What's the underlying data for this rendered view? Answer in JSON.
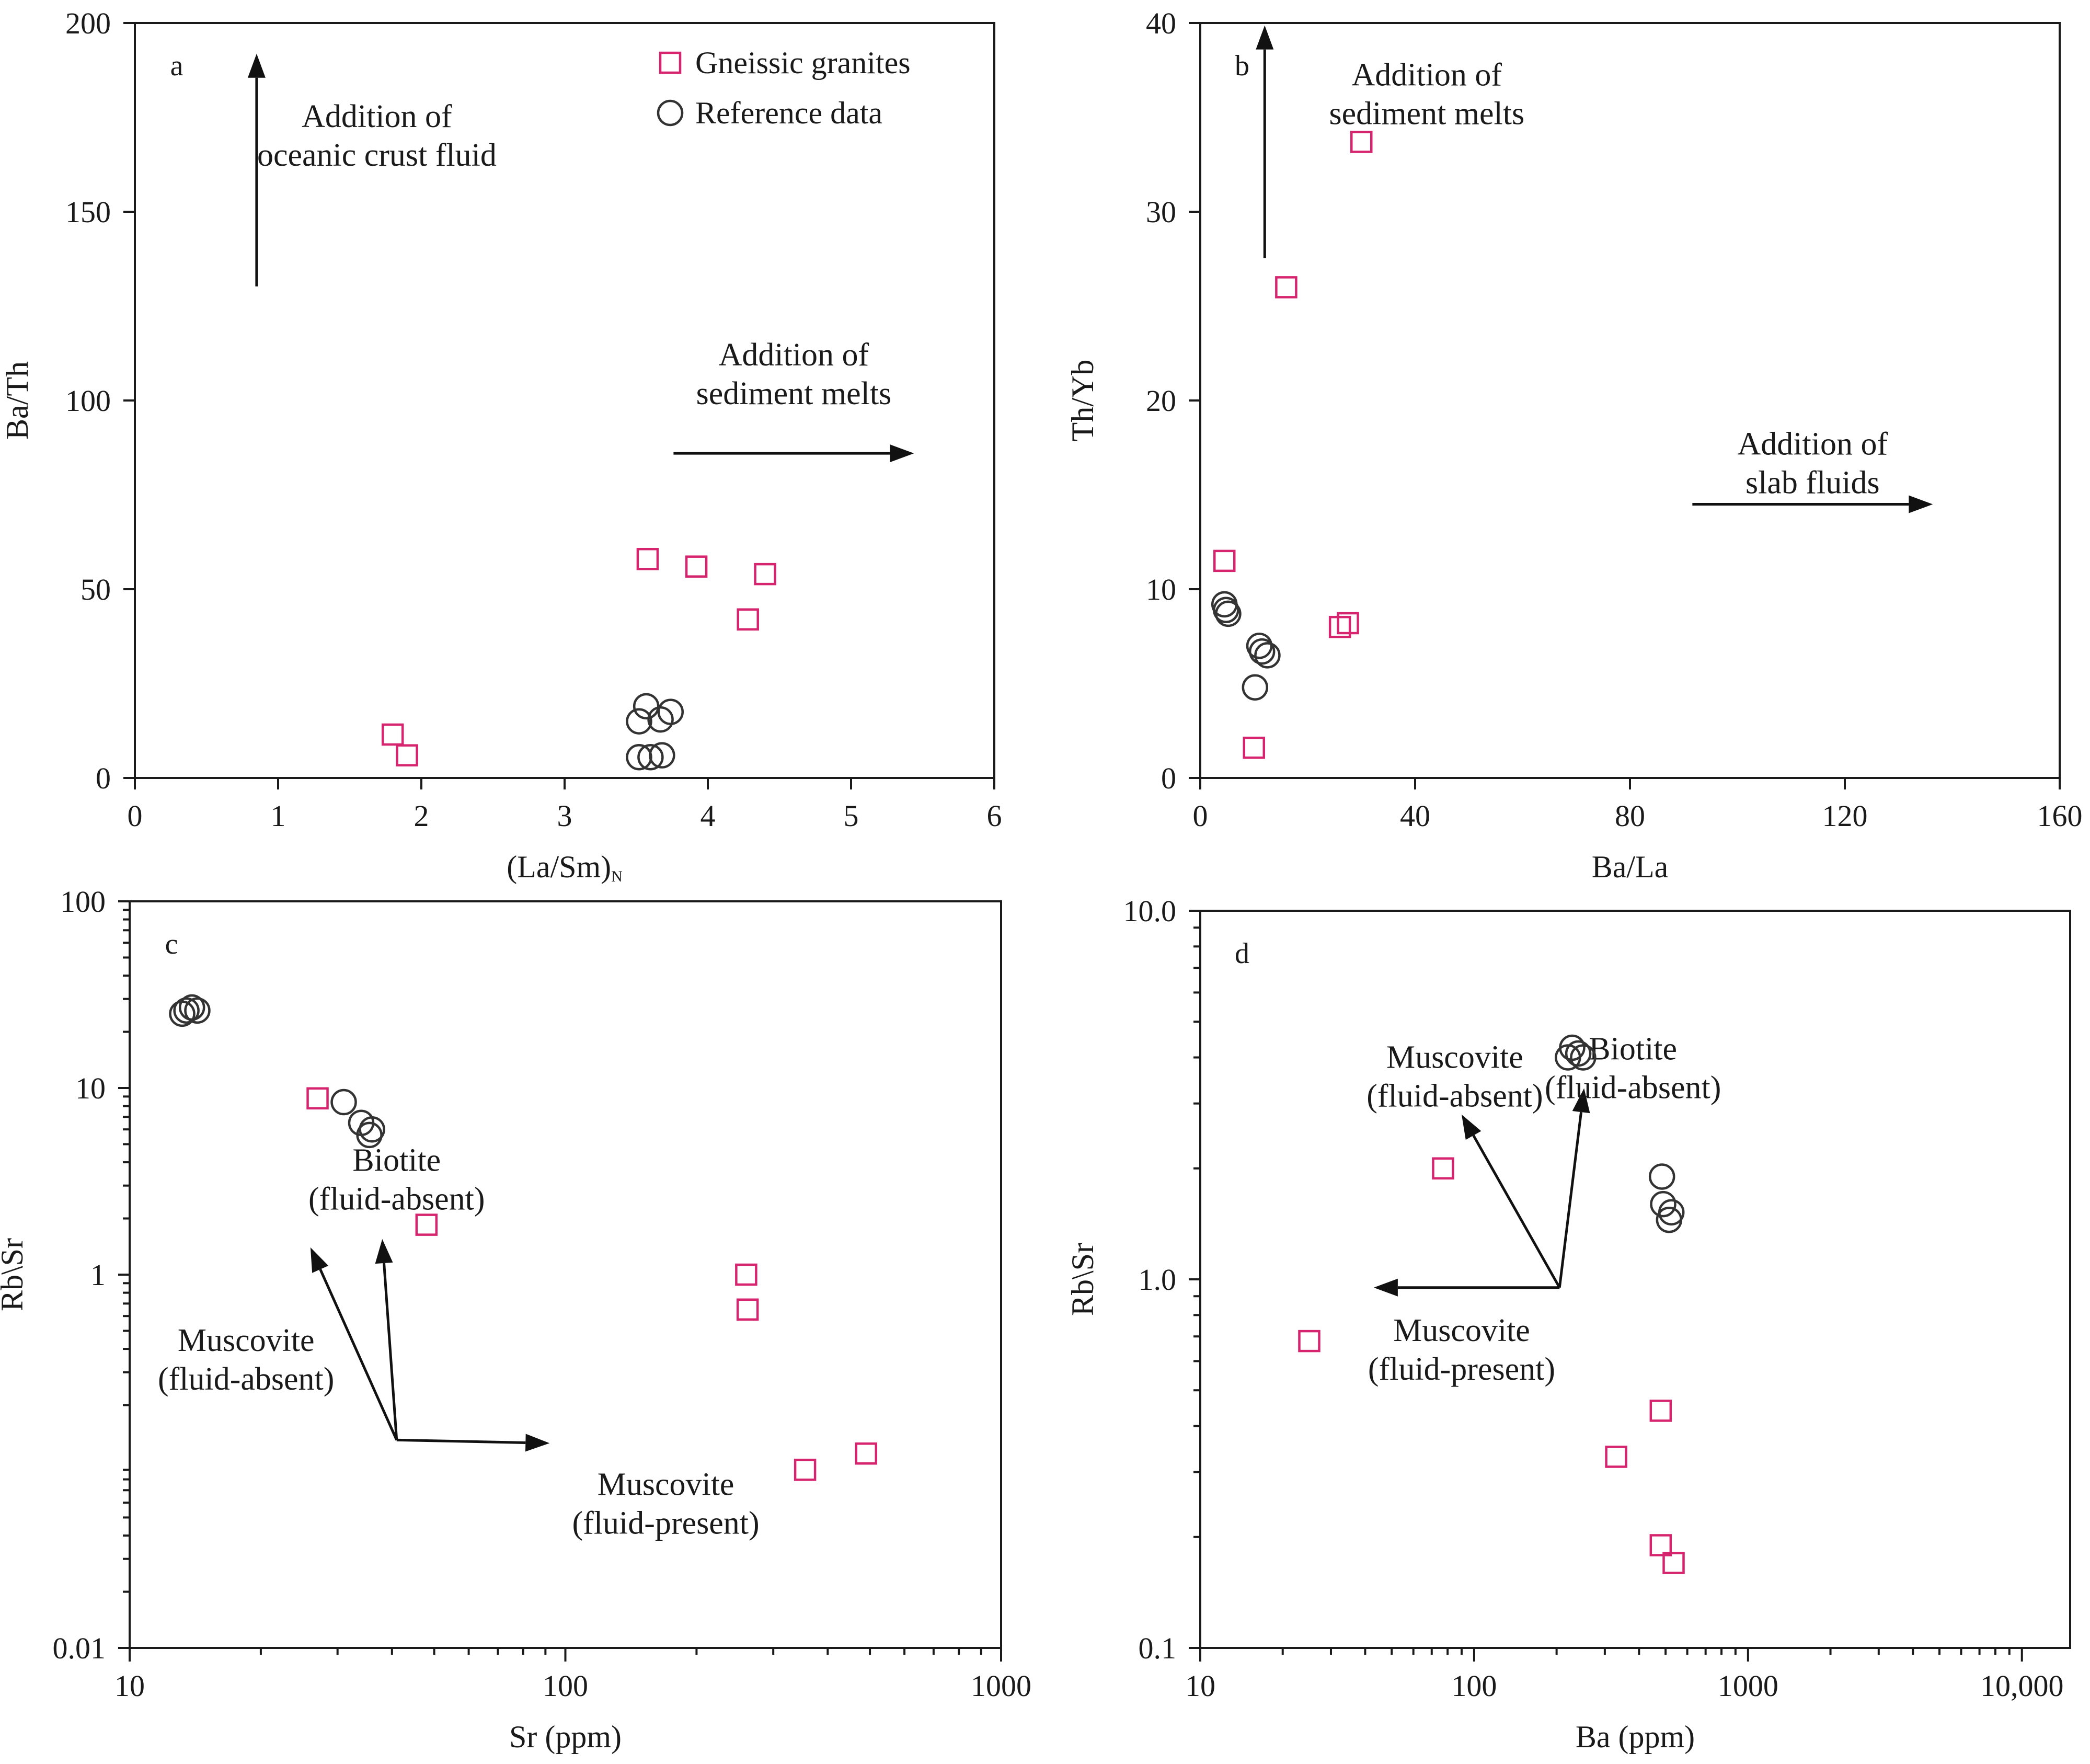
{
  "colors": {
    "gneiss": "#d6246e",
    "reference": "#333333",
    "axis": "#1a1a1a"
  },
  "chart_data": [
    {
      "id": "a",
      "type": "scatter",
      "panel_label": "a",
      "xlabel": "(La/Sm)",
      "xlabel_sub": "N",
      "ylabel": "Ba/Th",
      "xscale": "linear",
      "yscale": "linear",
      "xlim": [
        0,
        6
      ],
      "ylim": [
        0,
        200
      ],
      "xticks": [
        0,
        1,
        2,
        3,
        4,
        5,
        6
      ],
      "xtick_labels": [
        "0",
        "1",
        "2",
        "3",
        "4",
        "5",
        "6"
      ],
      "yticks": [
        0,
        50,
        100,
        150,
        200
      ],
      "ytick_labels": [
        "0",
        "50",
        "100",
        "150",
        "200"
      ],
      "legend": {
        "position": "top-right",
        "entries": [
          {
            "marker": "square",
            "label": "Gneissic granites"
          },
          {
            "marker": "circle",
            "label": "Reference data"
          }
        ]
      },
      "series": [
        {
          "name": "Gneissic granites",
          "marker": "square",
          "points": [
            [
              1.8,
              11.5
            ],
            [
              1.9,
              6
            ],
            [
              3.58,
              58
            ],
            [
              3.92,
              56
            ],
            [
              4.28,
              42
            ],
            [
              4.4,
              54
            ]
          ]
        },
        {
          "name": "Reference data",
          "marker": "circle",
          "points": [
            [
              3.57,
              19
            ],
            [
              3.52,
              15
            ],
            [
              3.67,
              15.5
            ],
            [
              3.74,
              17.5
            ],
            [
              3.52,
              5.5
            ],
            [
              3.6,
              5.5
            ],
            [
              3.68,
              6
            ]
          ]
        }
      ],
      "annotations": [
        {
          "lines": [
            "Addition of",
            "oceanic crust fluid"
          ],
          "arrow": "up",
          "x": 0.85,
          "y": 160
        },
        {
          "lines": [
            "Addition of",
            "sediment melts"
          ],
          "arrow": "right",
          "x": 4.6,
          "y": 86
        }
      ]
    },
    {
      "id": "b",
      "type": "scatter",
      "panel_label": "b",
      "xlabel": "Ba/La",
      "ylabel": "Th/Yb",
      "xscale": "linear",
      "yscale": "linear",
      "xlim": [
        0,
        160
      ],
      "ylim": [
        0,
        40
      ],
      "xticks": [
        0,
        40,
        80,
        120,
        160
      ],
      "xtick_labels": [
        "0",
        "40",
        "80",
        "120",
        "160"
      ],
      "yticks": [
        0,
        10,
        20,
        30,
        40
      ],
      "ytick_labels": [
        "0",
        "10",
        "20",
        "30",
        "40"
      ],
      "series": [
        {
          "name": "Gneissic granites",
          "marker": "square",
          "points": [
            [
              30,
              33.7
            ],
            [
              16,
              26
            ],
            [
              4.5,
              11.5
            ],
            [
              26,
              8
            ],
            [
              27.5,
              8.2
            ],
            [
              10,
              1.6
            ]
          ]
        },
        {
          "name": "Reference data",
          "marker": "circle",
          "points": [
            [
              4.5,
              9.2
            ],
            [
              4.8,
              8.9
            ],
            [
              5.2,
              8.7
            ],
            [
              11,
              7
            ],
            [
              11.5,
              6.7
            ],
            [
              12.5,
              6.5
            ],
            [
              10.2,
              4.8
            ]
          ]
        }
      ],
      "annotations": [
        {
          "lines": [
            "Addition of",
            "sediment melts"
          ],
          "arrow": "up",
          "x": 12,
          "y": 33.5
        },
        {
          "lines": [
            "Addition of",
            "slab fluids"
          ],
          "arrow": "right",
          "x": 114,
          "y": 14.5
        }
      ]
    },
    {
      "id": "c",
      "type": "scatter",
      "panel_label": "c",
      "xlabel": "Sr (ppm)",
      "ylabel": "Rb\\Sr",
      "xscale": "log",
      "yscale": "log",
      "xlim": [
        10,
        1000
      ],
      "ylim": [
        0.01,
        100
      ],
      "xticks": [
        10,
        100,
        1000
      ],
      "xtick_labels": [
        "10",
        "100",
        "1000"
      ],
      "yticks": [
        0.01,
        1,
        10,
        100
      ],
      "ytick_labels": [
        "0.01",
        "1",
        "10",
        "100"
      ],
      "series": [
        {
          "name": "Gneissic granites",
          "marker": "square",
          "points": [
            [
              27,
              8.8
            ],
            [
              48,
              1.85
            ],
            [
              260,
              1.0
            ],
            [
              262,
              0.65
            ],
            [
              355,
              0.09
            ],
            [
              490,
              0.11
            ]
          ]
        },
        {
          "name": "Reference data",
          "marker": "circle",
          "points": [
            [
              13.5,
              26
            ],
            [
              13.9,
              27
            ],
            [
              14.3,
              26
            ],
            [
              13.2,
              25
            ],
            [
              31,
              8.4
            ],
            [
              34,
              6.5
            ],
            [
              36,
              6.0
            ],
            [
              35.5,
              5.6
            ]
          ]
        }
      ],
      "vectors": [
        {
          "from": [
            41,
            0.13
          ],
          "to": [
            26,
            1.4
          ]
        },
        {
          "from": [
            41,
            0.13
          ],
          "to": [
            38,
            1.55
          ]
        },
        {
          "from": [
            41,
            0.13
          ],
          "to": [
            92,
            0.125
          ]
        }
      ],
      "annotations": [
        {
          "lines": [
            "Biotite",
            "(fluid-absent)"
          ],
          "x": 41,
          "y": 3.6
        },
        {
          "lines": [
            "Muscovite",
            "(fluid-absent)"
          ],
          "x": 18.5,
          "y": 0.39
        },
        {
          "lines": [
            "Muscovite",
            "(fluid-present)"
          ],
          "x": 170,
          "y": 0.066
        }
      ]
    },
    {
      "id": "d",
      "type": "scatter",
      "panel_label": "d",
      "xlabel": "Ba (ppm)",
      "ylabel": "Rb\\Sr",
      "xscale": "log",
      "yscale": "log",
      "xlim": [
        10,
        15000
      ],
      "ylim": [
        0.1,
        10
      ],
      "xticks": [
        10,
        100,
        1000,
        10000
      ],
      "xtick_labels": [
        "10",
        "100",
        "1000",
        "10,000"
      ],
      "yticks": [
        0.1,
        1,
        10
      ],
      "ytick_labels": [
        "0.1",
        "1.0",
        "10.0"
      ],
      "series": [
        {
          "name": "Gneissic granites",
          "marker": "square",
          "points": [
            [
              77,
              2.0
            ],
            [
              25,
              0.68
            ],
            [
              480,
              0.44
            ],
            [
              330,
              0.33
            ],
            [
              480,
              0.19
            ],
            [
              535,
              0.17
            ]
          ]
        },
        {
          "name": "Reference data",
          "marker": "circle",
          "points": [
            [
              220,
              4.0
            ],
            [
              228,
              4.25
            ],
            [
              240,
              4.1
            ],
            [
              250,
              4.0
            ],
            [
              485,
              1.9
            ],
            [
              490,
              1.6
            ],
            [
              515,
              1.45
            ],
            [
              525,
              1.52
            ]
          ]
        }
      ],
      "vectors": [
        {
          "from": [
            205,
            0.95
          ],
          "to": [
            43,
            0.95
          ]
        },
        {
          "from": [
            205,
            0.95
          ],
          "to": [
            90,
            2.8
          ]
        },
        {
          "from": [
            205,
            0.95
          ],
          "to": [
            252,
            3.3
          ]
        }
      ],
      "annotations": [
        {
          "lines": [
            "Muscovite",
            "(fluid-absent)"
          ],
          "x": 85,
          "y": 3.75
        },
        {
          "lines": [
            "Biotite",
            "(fluid-absent)"
          ],
          "x": 380,
          "y": 3.95
        },
        {
          "lines": [
            "Muscovite",
            "(fluid-present)"
          ],
          "x": 90,
          "y": 0.68
        }
      ]
    }
  ]
}
